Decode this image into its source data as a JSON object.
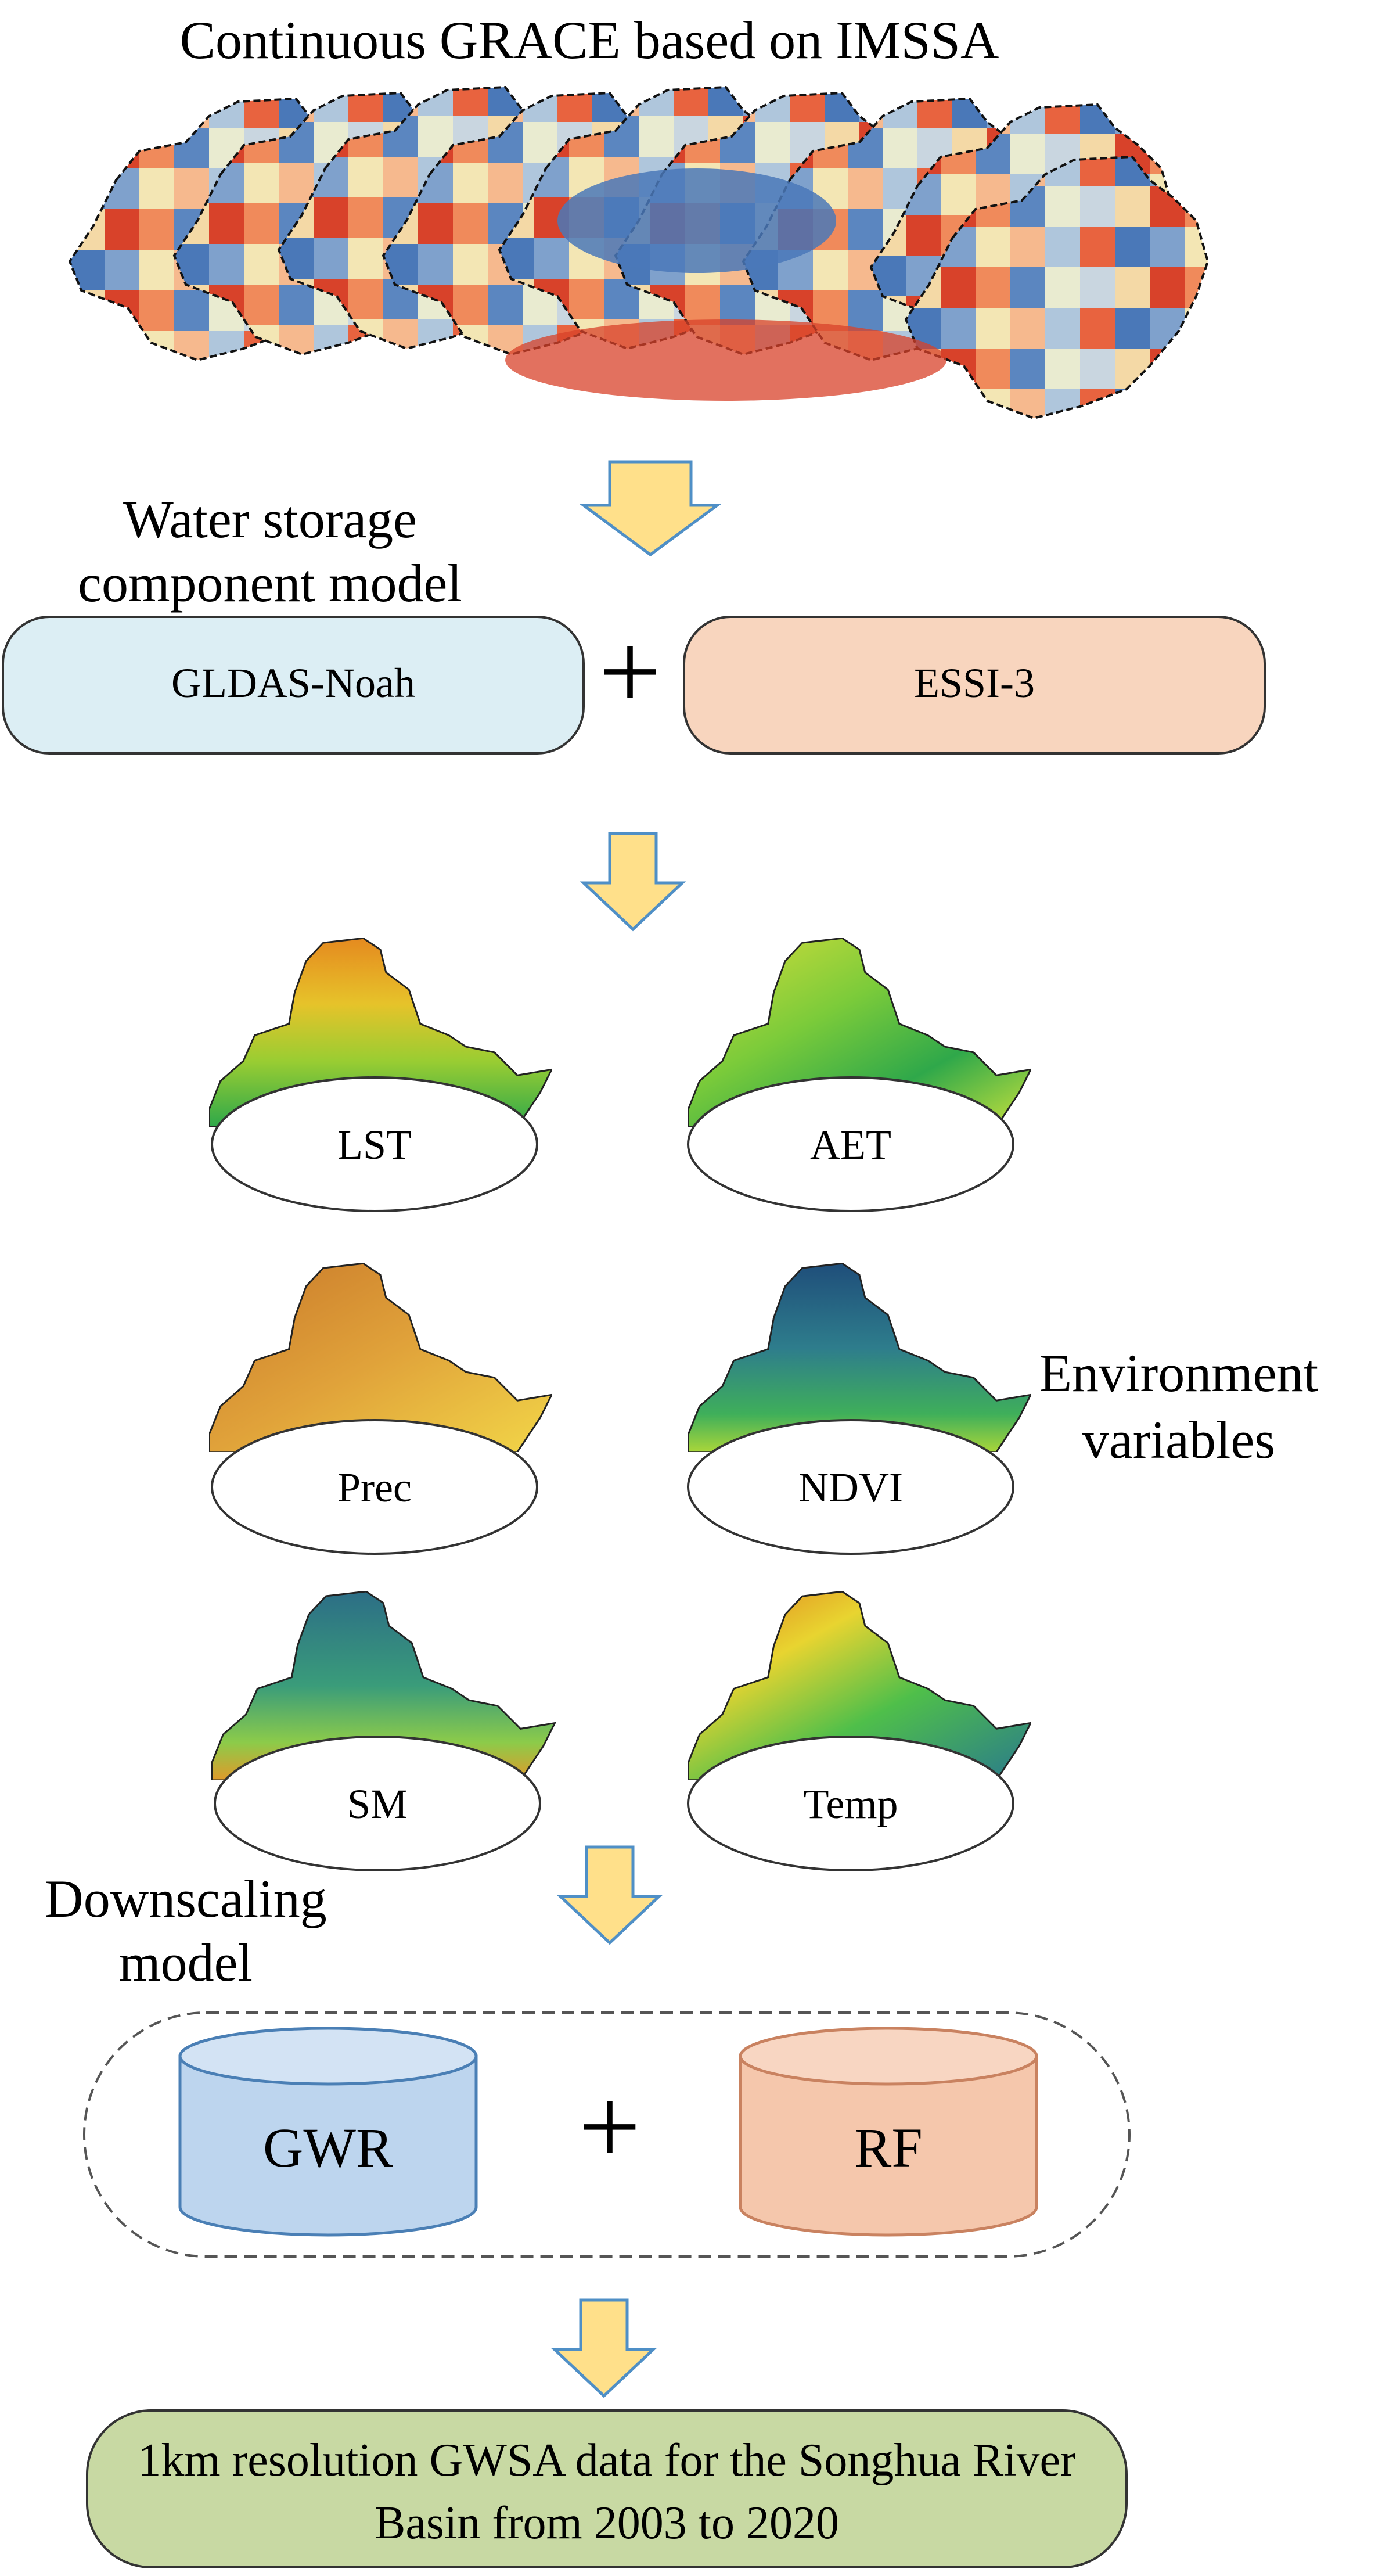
{
  "title": "Continuous GRACE based on IMSSA",
  "water_storage": {
    "label_line1": "Water storage",
    "label_line2": "component model",
    "left_box": "GLDAS-Noah",
    "plus": "+",
    "right_box": "ESSI-3"
  },
  "environment": {
    "label_line1": "Environment",
    "label_line2": "variables",
    "variables": [
      "LST",
      "AET",
      "Prec",
      "NDVI",
      "SM",
      "Temp"
    ]
  },
  "downscaling": {
    "label_line1": "Downscaling",
    "label_line2": "model",
    "left_model": "GWR",
    "plus": "+",
    "right_model": "RF"
  },
  "output": {
    "line1": "1km resolution GWSA data for the Songhua River",
    "line2": "Basin from 2003 to 2020"
  },
  "colors": {
    "arrow_fill": "#FFE08A",
    "arrow_stroke": "#4F8FC6",
    "gldas_fill": "#DCEEF4",
    "essi_fill": "#F8D5BE",
    "gwr_fill": "#BDD5EE",
    "gwr_stroke": "#4A7FB5",
    "rf_fill": "#F5C7AC",
    "rf_stroke": "#C98260",
    "output_fill": "#C8D9A3"
  }
}
